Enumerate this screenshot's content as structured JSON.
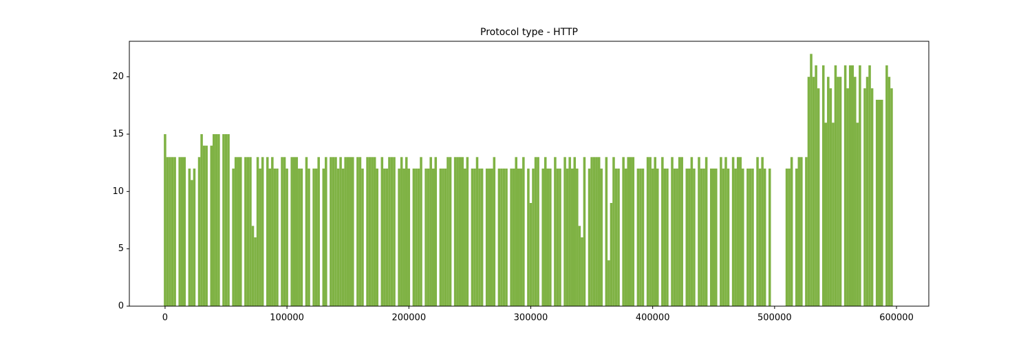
{
  "chart_data": {
    "type": "bar",
    "title": "Protocol type - HTTP",
    "color": "#7fb244",
    "xlim": [
      -29300,
      626500
    ],
    "xticks": [
      0,
      100000,
      200000,
      300000,
      400000,
      500000,
      600000
    ],
    "ylim": [
      0,
      23.1
    ],
    "yticks": [
      0,
      5,
      10,
      15,
      20
    ],
    "grid": false,
    "x": [
      0,
      2000,
      4000,
      6000,
      8000,
      10000,
      12000,
      14000,
      16000,
      18000,
      20000,
      22000,
      24000,
      26000,
      28000,
      30000,
      32000,
      34000,
      36000,
      38000,
      40000,
      42000,
      44000,
      46000,
      48000,
      50000,
      52000,
      54000,
      56000,
      58000,
      60000,
      62000,
      64000,
      66000,
      68000,
      70000,
      72000,
      74000,
      76000,
      78000,
      80000,
      82000,
      84000,
      86000,
      88000,
      90000,
      92000,
      94000,
      96000,
      98000,
      100000,
      102000,
      104000,
      106000,
      108000,
      110000,
      112000,
      114000,
      116000,
      118000,
      120000,
      122000,
      124000,
      126000,
      128000,
      130000,
      132000,
      134000,
      136000,
      138000,
      140000,
      142000,
      144000,
      146000,
      148000,
      150000,
      152000,
      154000,
      156000,
      158000,
      160000,
      162000,
      164000,
      166000,
      168000,
      170000,
      172000,
      174000,
      176000,
      178000,
      180000,
      182000,
      184000,
      186000,
      188000,
      190000,
      192000,
      194000,
      196000,
      198000,
      200000,
      202000,
      204000,
      206000,
      208000,
      210000,
      212000,
      214000,
      216000,
      218000,
      220000,
      222000,
      224000,
      226000,
      228000,
      230000,
      232000,
      234000,
      236000,
      238000,
      240000,
      242000,
      244000,
      246000,
      248000,
      250000,
      252000,
      254000,
      256000,
      258000,
      260000,
      262000,
      264000,
      266000,
      268000,
      270000,
      272000,
      274000,
      276000,
      278000,
      280000,
      282000,
      284000,
      286000,
      288000,
      290000,
      292000,
      294000,
      296000,
      298000,
      300000,
      302000,
      304000,
      306000,
      308000,
      310000,
      312000,
      314000,
      316000,
      318000,
      320000,
      322000,
      324000,
      326000,
      328000,
      330000,
      332000,
      334000,
      336000,
      338000,
      340000,
      342000,
      344000,
      346000,
      348000,
      350000,
      352000,
      354000,
      356000,
      358000,
      360000,
      362000,
      364000,
      366000,
      368000,
      370000,
      372000,
      374000,
      376000,
      378000,
      380000,
      382000,
      384000,
      386000,
      388000,
      390000,
      392000,
      394000,
      396000,
      398000,
      400000,
      402000,
      404000,
      406000,
      408000,
      410000,
      412000,
      414000,
      416000,
      418000,
      420000,
      422000,
      424000,
      426000,
      428000,
      430000,
      432000,
      434000,
      436000,
      438000,
      440000,
      442000,
      444000,
      446000,
      448000,
      450000,
      452000,
      454000,
      456000,
      458000,
      460000,
      462000,
      464000,
      466000,
      468000,
      470000,
      472000,
      474000,
      476000,
      478000,
      480000,
      482000,
      484000,
      486000,
      488000,
      490000,
      492000,
      494000,
      496000,
      498000,
      500000,
      502000,
      504000,
      506000,
      508000,
      510000,
      512000,
      514000,
      516000,
      518000,
      520000,
      522000,
      524000,
      526000,
      528000,
      530000,
      532000,
      534000,
      536000,
      538000,
      540000,
      542000,
      544000,
      546000,
      548000,
      550000,
      552000,
      554000,
      556000,
      558000,
      560000,
      562000,
      564000,
      566000,
      568000,
      570000,
      572000,
      574000,
      576000,
      578000,
      580000,
      582000,
      584000,
      586000,
      588000,
      590000,
      592000,
      594000,
      596000,
      598000
    ],
    "values": [
      15,
      13,
      13,
      13,
      13,
      0,
      13,
      13,
      13,
      0,
      12,
      11,
      12,
      0,
      13,
      15,
      14,
      14,
      0,
      14,
      15,
      15,
      15,
      0,
      15,
      15,
      15,
      0,
      12,
      13,
      13,
      13,
      0,
      13,
      13,
      13,
      7,
      6,
      13,
      12,
      13,
      0,
      13,
      12,
      13,
      12,
      12,
      0,
      13,
      13,
      12,
      0,
      13,
      13,
      13,
      12,
      12,
      0,
      13,
      12,
      0,
      12,
      12,
      13,
      0,
      12,
      13,
      0,
      13,
      13,
      13,
      12,
      13,
      12,
      13,
      13,
      13,
      13,
      0,
      13,
      13,
      12,
      0,
      13,
      13,
      13,
      13,
      12,
      0,
      13,
      12,
      12,
      13,
      13,
      13,
      0,
      12,
      13,
      12,
      13,
      12,
      0,
      12,
      12,
      12,
      13,
      0,
      12,
      12,
      13,
      12,
      13,
      0,
      12,
      12,
      12,
      13,
      13,
      0,
      13,
      13,
      13,
      13,
      12,
      13,
      0,
      12,
      12,
      13,
      12,
      12,
      0,
      12,
      12,
      12,
      13,
      0,
      12,
      12,
      12,
      12,
      0,
      12,
      12,
      13,
      12,
      12,
      13,
      0,
      12,
      9,
      12,
      13,
      13,
      0,
      12,
      13,
      12,
      12,
      0,
      13,
      12,
      12,
      0,
      13,
      12,
      13,
      12,
      13,
      12,
      7,
      6,
      13,
      0,
      12,
      13,
      13,
      13,
      13,
      12,
      0,
      13,
      4,
      9,
      13,
      12,
      12,
      0,
      13,
      12,
      13,
      13,
      13,
      0,
      12,
      12,
      12,
      0,
      13,
      13,
      12,
      13,
      12,
      0,
      13,
      12,
      12,
      0,
      13,
      12,
      12,
      13,
      13,
      0,
      12,
      12,
      13,
      12,
      0,
      13,
      12,
      12,
      13,
      0,
      12,
      12,
      12,
      0,
      13,
      12,
      13,
      12,
      0,
      13,
      12,
      13,
      13,
      12,
      0,
      12,
      12,
      12,
      0,
      13,
      12,
      13,
      12,
      0,
      12,
      0,
      0,
      0,
      0,
      0,
      0,
      12,
      12,
      13,
      0,
      12,
      13,
      13,
      0,
      13,
      20,
      22,
      20,
      21,
      19,
      0,
      21,
      16,
      20,
      19,
      16,
      21,
      20,
      20,
      0,
      21,
      19,
      21,
      21,
      20,
      16,
      21,
      0,
      19,
      20,
      21,
      19,
      0,
      18,
      18,
      18,
      0,
      21,
      20,
      19,
      0
    ]
  }
}
